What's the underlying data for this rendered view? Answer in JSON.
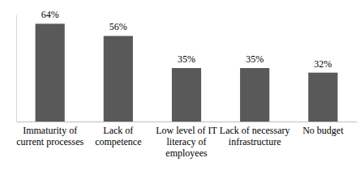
{
  "chart_data": {
    "type": "bar",
    "categories": [
      "Immaturity of current processes",
      "Lack of competence",
      "Low level of IT literacy of employees",
      "Lack of necessary infrastructure",
      "No budget"
    ],
    "values": [
      64,
      56,
      35,
      35,
      32
    ],
    "value_labels": [
      "64%",
      "56%",
      "35%",
      "35%",
      "32%"
    ],
    "color": "#595959",
    "ylim": [
      0,
      70
    ],
    "data_labels": true,
    "tick_labels": "x",
    "grid": false
  }
}
